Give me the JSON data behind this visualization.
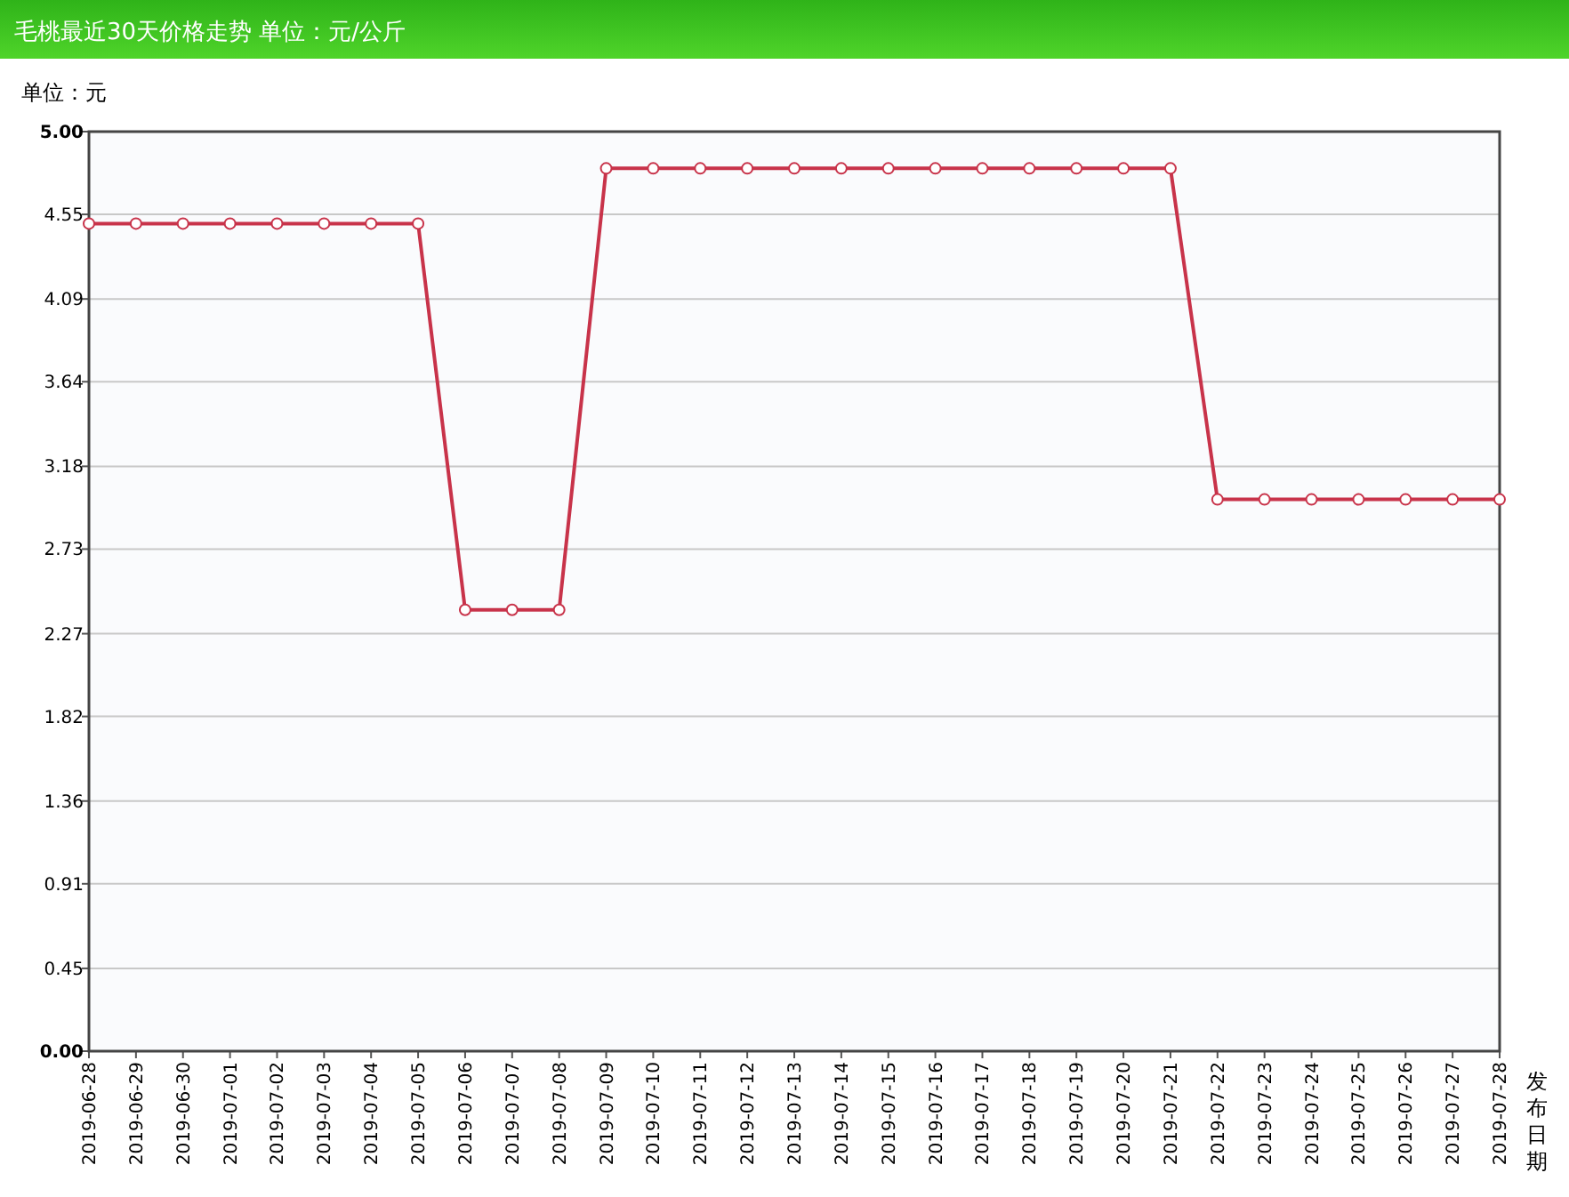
{
  "chart_data": {
    "type": "line",
    "title": "毛桃最近30天价格走势 单位：元/公斤",
    "ylabel": "单位：元",
    "xlabel": "发布日期",
    "categories": [
      "2019-06-28",
      "2019-06-29",
      "2019-06-30",
      "2019-07-01",
      "2019-07-02",
      "2019-07-03",
      "2019-07-04",
      "2019-07-05",
      "2019-07-06",
      "2019-07-07",
      "2019-07-08",
      "2019-07-09",
      "2019-07-10",
      "2019-07-11",
      "2019-07-12",
      "2019-07-13",
      "2019-07-14",
      "2019-07-15",
      "2019-07-16",
      "2019-07-17",
      "2019-07-18",
      "2019-07-19",
      "2019-07-20",
      "2019-07-21",
      "2019-07-22",
      "2019-07-23",
      "2019-07-24",
      "2019-07-25",
      "2019-07-26",
      "2019-07-27",
      "2019-07-28"
    ],
    "series": [
      {
        "color": "#c8334a",
        "values": [
          4.5,
          4.5,
          4.5,
          4.5,
          4.5,
          4.5,
          4.5,
          4.5,
          2.4,
          2.4,
          2.4,
          4.8,
          4.8,
          4.8,
          4.8,
          4.8,
          4.8,
          4.8,
          4.8,
          4.8,
          4.8,
          4.8,
          4.8,
          4.8,
          3.0,
          3.0,
          3.0,
          3.0,
          3.0,
          3.0,
          3.0
        ]
      }
    ],
    "ylim": [
      0,
      5
    ],
    "yticks": [
      {
        "value": 0,
        "label": "0.00"
      },
      0.45,
      0.91,
      1.36,
      1.82,
      2.27,
      2.73,
      3.18,
      3.64,
      4.09,
      4.55,
      {
        "value": 5,
        "label": "5.00"
      }
    ],
    "grid": "y",
    "marker": "circle",
    "line_style": "solid"
  }
}
